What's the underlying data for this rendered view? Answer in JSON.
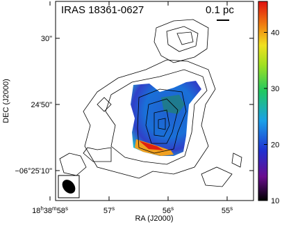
{
  "figure": {
    "title": "IRAS 18361-0627",
    "scale_bar": "0.1 pc",
    "x_label": "RA (J2000)",
    "y_label": "DEC (J2000)",
    "x_ticks": [
      [
        "18",
        "h",
        "38",
        "m",
        "58",
        "s"
      ],
      [
        "57",
        "s"
      ],
      [
        "56",
        "s"
      ],
      [
        "55",
        "s"
      ]
    ],
    "y_ticks": [
      "30\"",
      "24'50\"",
      "−06°25'10\""
    ],
    "colorbar_ticks": [
      "10",
      "20",
      "30",
      "40"
    ]
  }
}
